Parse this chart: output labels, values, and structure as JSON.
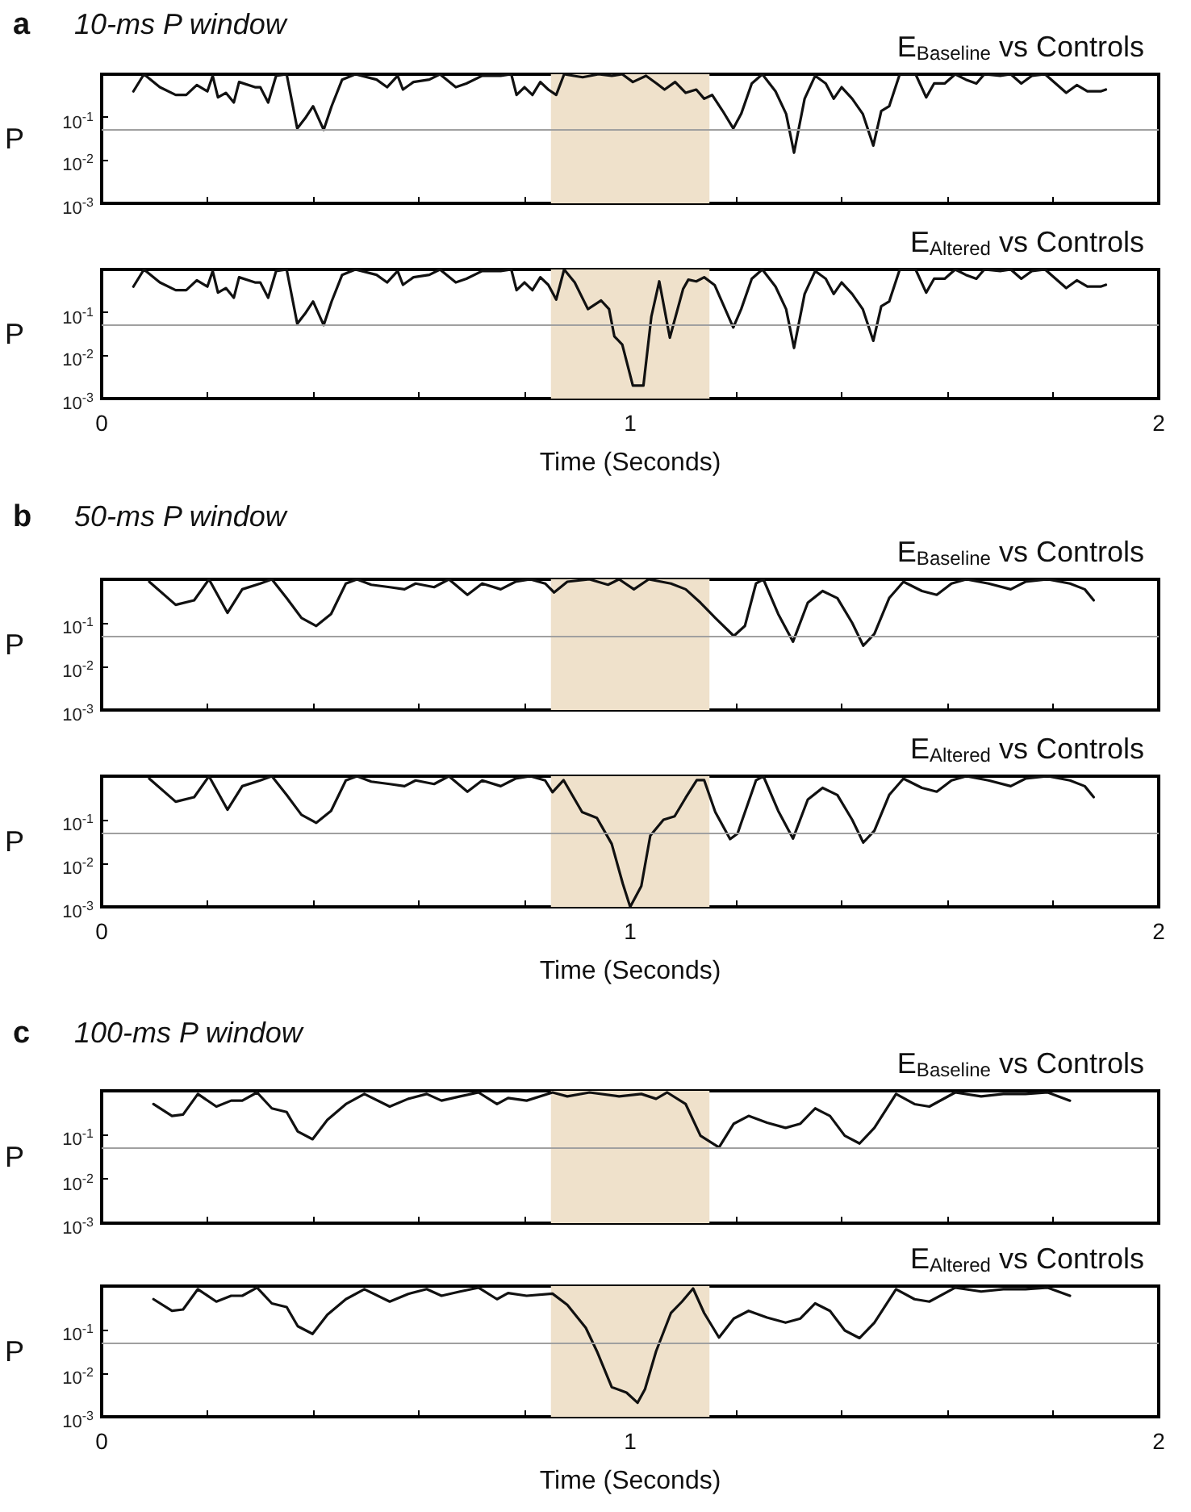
{
  "chart_data": [
    {
      "type": "line",
      "title": "E$_{Baseline}$ vs Controls",
      "annotations": [
        "a",
        "10-ms P window"
      ],
      "ylabel": "P",
      "tick_labels": "y",
      "log": "y",
      "x": [
        0.06,
        0.08,
        0.11,
        0.14,
        0.16,
        0.18,
        0.2,
        0.21,
        0.22,
        0.235,
        0.25,
        0.26,
        0.29,
        0.3,
        0.315,
        0.33,
        0.35,
        0.37,
        0.385,
        0.4,
        0.42,
        0.435,
        0.455,
        0.48,
        0.52,
        0.54,
        0.56,
        0.57,
        0.59,
        0.62,
        0.64,
        0.67,
        0.69,
        0.72,
        0.755,
        0.775,
        0.785,
        0.8,
        0.815,
        0.83,
        0.845,
        0.86,
        0.875,
        0.91,
        0.94,
        0.965,
        0.985,
        1.005,
        1.03,
        1.05,
        1.065,
        1.085,
        1.105,
        1.125,
        1.14,
        1.155,
        1.175,
        1.195,
        1.21,
        1.23,
        1.25,
        1.275,
        1.295,
        1.31,
        1.33,
        1.35,
        1.37,
        1.385,
        1.4,
        1.42,
        1.44,
        1.46,
        1.475,
        1.49,
        1.51,
        1.54,
        1.56,
        1.575,
        1.595,
        1.615,
        1.635,
        1.655,
        1.67,
        1.7,
        1.72,
        1.74,
        1.76,
        1.785,
        1.805,
        1.825,
        1.845,
        1.865,
        1.89,
        1.9
      ],
      "series": [
        {
          "color": "#111111",
          "values": [
            0.4,
            1,
            0.5,
            0.33,
            0.33,
            0.56,
            0.4,
            0.92,
            0.29,
            0.37,
            0.22,
            0.66,
            0.5,
            0.5,
            0.22,
            0.92,
            1,
            0.055,
            0.095,
            0.18,
            0.051,
            0.18,
            0.75,
            1,
            0.75,
            0.5,
            0.92,
            0.44,
            0.66,
            0.75,
            1,
            0.5,
            0.61,
            0.92,
            0.92,
            1,
            0.33,
            0.5,
            0.33,
            0.66,
            0.44,
            0.33,
            1,
            0.85,
            1,
            0.92,
            1,
            0.66,
            0.92,
            0.61,
            0.44,
            0.66,
            0.37,
            0.44,
            0.27,
            0.33,
            0.14,
            0.055,
            0.12,
            0.61,
            1,
            0.4,
            0.12,
            0.015,
            0.27,
            0.92,
            0.61,
            0.27,
            0.5,
            0.27,
            0.12,
            0.022,
            0.14,
            0.18,
            1,
            1,
            0.29,
            0.61,
            0.61,
            1,
            0.75,
            0.61,
            1,
            0.92,
            1,
            0.61,
            0.92,
            1,
            0.61,
            0.37,
            0.56,
            0.4,
            0.4,
            0.44
          ]
        }
      ],
      "xlim": [
        0,
        2
      ],
      "xticks": [
        0,
        {
          "value": 0.2,
          "label": null
        },
        {
          "value": 0.4,
          "label": null
        },
        {
          "value": 0.6,
          "label": null
        },
        {
          "value": 0.8,
          "label": null
        },
        1,
        {
          "value": 1.2,
          "label": null
        },
        {
          "value": 1.4,
          "label": null
        },
        {
          "value": 1.6,
          "label": null
        },
        {
          "value": 1.8,
          "label": null
        },
        2
      ],
      "ylim": [
        0.001,
        1
      ],
      "yticks": [
        {
          "value": 0.001,
          "label": "10$^{-3}$"
        },
        {
          "value": 0.01,
          "label": "10$^{-2}$"
        },
        {
          "value": 0.1,
          "label": "10$^{-1}$"
        }
      ],
      "ref_lines": [
        {
          "axis": "y",
          "value": 0.05,
          "color": "#a0a0a0"
        }
      ],
      "bands": [
        {
          "axis": "x",
          "from": 0.85,
          "to": 1.15,
          "color": "#efe1cb"
        }
      ]
    },
    {
      "type": "line",
      "title": "E$_{Altered}$ vs Controls",
      "xlabel": "Time (Seconds)",
      "ylabel": "P",
      "log": "y",
      "x": [
        0.06,
        0.08,
        0.11,
        0.14,
        0.16,
        0.18,
        0.2,
        0.21,
        0.22,
        0.235,
        0.25,
        0.26,
        0.29,
        0.3,
        0.315,
        0.33,
        0.35,
        0.37,
        0.385,
        0.4,
        0.42,
        0.435,
        0.455,
        0.48,
        0.52,
        0.54,
        0.56,
        0.57,
        0.59,
        0.62,
        0.64,
        0.67,
        0.69,
        0.72,
        0.755,
        0.775,
        0.785,
        0.8,
        0.815,
        0.83,
        0.845,
        0.86,
        0.875,
        0.895,
        0.92,
        0.945,
        0.96,
        0.97,
        0.985,
        1.005,
        1.025,
        1.04,
        1.055,
        1.075,
        1.1,
        1.11,
        1.125,
        1.14,
        1.16,
        1.195,
        1.21,
        1.23,
        1.25,
        1.275,
        1.295,
        1.31,
        1.33,
        1.35,
        1.37,
        1.385,
        1.4,
        1.42,
        1.44,
        1.46,
        1.475,
        1.49,
        1.51,
        1.54,
        1.56,
        1.575,
        1.595,
        1.615,
        1.635,
        1.655,
        1.67,
        1.7,
        1.72,
        1.74,
        1.76,
        1.785,
        1.805,
        1.825,
        1.845,
        1.865,
        1.89,
        1.9
      ],
      "series": [
        {
          "color": "#111111",
          "values": [
            0.4,
            1,
            0.5,
            0.33,
            0.33,
            0.56,
            0.4,
            0.92,
            0.29,
            0.37,
            0.22,
            0.66,
            0.5,
            0.5,
            0.22,
            0.92,
            1,
            0.055,
            0.095,
            0.18,
            0.051,
            0.18,
            0.75,
            1,
            0.75,
            0.5,
            0.92,
            0.44,
            0.66,
            0.75,
            1,
            0.5,
            0.61,
            0.92,
            0.92,
            1,
            0.33,
            0.5,
            0.33,
            0.66,
            0.44,
            0.2,
            1,
            0.5,
            0.12,
            0.19,
            0.12,
            0.028,
            0.018,
            0.002,
            0.002,
            0.08,
            0.53,
            0.026,
            0.35,
            0.58,
            0.53,
            0.66,
            0.43,
            0.045,
            0.12,
            0.61,
            1,
            0.4,
            0.12,
            0.015,
            0.27,
            0.92,
            0.61,
            0.27,
            0.5,
            0.27,
            0.12,
            0.022,
            0.14,
            0.18,
            1,
            1,
            0.29,
            0.61,
            0.61,
            1,
            0.75,
            0.61,
            1,
            0.92,
            1,
            0.61,
            0.92,
            1,
            0.61,
            0.37,
            0.56,
            0.4,
            0.4,
            0.44
          ]
        }
      ],
      "xlim": [
        0,
        2
      ],
      "xticks": [
        0,
        {
          "value": 0.2,
          "label": null
        },
        {
          "value": 0.4,
          "label": null
        },
        {
          "value": 0.6,
          "label": null
        },
        {
          "value": 0.8,
          "label": null
        },
        1,
        {
          "value": 1.2,
          "label": null
        },
        {
          "value": 1.4,
          "label": null
        },
        {
          "value": 1.6,
          "label": null
        },
        {
          "value": 1.8,
          "label": null
        },
        2
      ],
      "ylim": [
        0.001,
        1
      ],
      "yticks": [
        {
          "value": 0.001,
          "label": "10$^{-3}$"
        },
        {
          "value": 0.01,
          "label": "10$^{-2}$"
        },
        {
          "value": 0.1,
          "label": "10$^{-1}$"
        }
      ],
      "ref_lines": [
        {
          "axis": "y",
          "value": 0.05,
          "color": "#a0a0a0"
        }
      ],
      "bands": [
        {
          "axis": "x",
          "from": 0.85,
          "to": 1.15,
          "color": "#efe1cb"
        }
      ]
    },
    {
      "type": "line",
      "title": "E$_{Baseline}$ vs Controls",
      "annotations": [
        "b",
        "50-ms P window"
      ],
      "ylabel": "P",
      "tick_labels": "y",
      "log": "y",
      "x": [
        0.09,
        0.14,
        0.175,
        0.203,
        0.238,
        0.266,
        0.3,
        0.322,
        0.35,
        0.378,
        0.406,
        0.434,
        0.462,
        0.483,
        0.51,
        0.545,
        0.573,
        0.594,
        0.629,
        0.657,
        0.692,
        0.72,
        0.755,
        0.783,
        0.811,
        0.839,
        0.856,
        0.881,
        0.923,
        0.958,
        0.979,
        1.007,
        1.035,
        1.077,
        1.105,
        1.133,
        1.161,
        1.196,
        1.217,
        1.238,
        1.252,
        1.28,
        1.308,
        1.336,
        1.364,
        1.392,
        1.42,
        1.441,
        1.462,
        1.49,
        1.517,
        1.552,
        1.58,
        1.608,
        1.636,
        1.678,
        1.72,
        1.748,
        1.79,
        1.832,
        1.86,
        1.877
      ],
      "series": [
        {
          "color": "#111111",
          "values": [
            0.88,
            0.26,
            0.33,
            1,
            0.17,
            0.59,
            0.8,
            1,
            0.37,
            0.13,
            0.085,
            0.16,
            0.8,
            1,
            0.75,
            0.66,
            0.59,
            0.8,
            0.66,
            1,
            0.44,
            0.8,
            0.59,
            0.88,
            1,
            0.8,
            0.5,
            0.88,
            1,
            0.75,
            1,
            0.59,
            1,
            0.8,
            0.59,
            0.29,
            0.13,
            0.05,
            0.085,
            0.8,
            1,
            0.16,
            0.037,
            0.29,
            0.54,
            0.37,
            0.1,
            0.03,
            0.056,
            0.37,
            0.88,
            0.54,
            0.44,
            0.8,
            1,
            0.8,
            0.59,
            0.88,
            1,
            0.8,
            0.59,
            0.33
          ]
        }
      ],
      "xlim": [
        0,
        2
      ],
      "xticks": [
        0,
        {
          "value": 0.2,
          "label": null
        },
        {
          "value": 0.4,
          "label": null
        },
        {
          "value": 0.6,
          "label": null
        },
        {
          "value": 0.8,
          "label": null
        },
        1,
        {
          "value": 1.2,
          "label": null
        },
        {
          "value": 1.4,
          "label": null
        },
        {
          "value": 1.6,
          "label": null
        },
        {
          "value": 1.8,
          "label": null
        },
        2
      ],
      "ylim": [
        0.001,
        1
      ],
      "yticks": [
        {
          "value": 0.001,
          "label": "10$^{-3}$"
        },
        {
          "value": 0.01,
          "label": "10$^{-2}$"
        },
        {
          "value": 0.1,
          "label": "10$^{-1}$"
        }
      ],
      "ref_lines": [
        {
          "axis": "y",
          "value": 0.05,
          "color": "#a0a0a0"
        }
      ],
      "bands": [
        {
          "axis": "x",
          "from": 0.85,
          "to": 1.15,
          "color": "#efe1cb"
        }
      ]
    },
    {
      "type": "line",
      "title": "E$_{Altered}$ vs Controls",
      "xlabel": "Time (Seconds)",
      "ylabel": "P",
      "log": "y",
      "x": [
        0.09,
        0.14,
        0.175,
        0.203,
        0.238,
        0.266,
        0.3,
        0.322,
        0.35,
        0.378,
        0.406,
        0.434,
        0.462,
        0.483,
        0.51,
        0.545,
        0.573,
        0.594,
        0.629,
        0.657,
        0.692,
        0.72,
        0.755,
        0.783,
        0.811,
        0.839,
        0.853,
        0.874,
        0.909,
        0.937,
        0.965,
        0.986,
        1.0,
        1.021,
        1.038,
        1.063,
        1.084,
        1.105,
        1.126,
        1.14,
        1.161,
        1.189,
        1.203,
        1.238,
        1.252,
        1.28,
        1.308,
        1.336,
        1.364,
        1.392,
        1.42,
        1.441,
        1.462,
        1.49,
        1.517,
        1.552,
        1.58,
        1.608,
        1.636,
        1.678,
        1.72,
        1.748,
        1.79,
        1.832,
        1.86,
        1.877
      ],
      "series": [
        {
          "color": "#111111",
          "values": [
            0.88,
            0.26,
            0.33,
            1,
            0.17,
            0.59,
            0.8,
            1,
            0.37,
            0.13,
            0.085,
            0.16,
            0.8,
            1,
            0.75,
            0.66,
            0.59,
            0.8,
            0.66,
            1,
            0.44,
            0.8,
            0.59,
            0.88,
            1,
            0.8,
            0.43,
            0.81,
            0.15,
            0.11,
            0.028,
            0.0034,
            0.001,
            0.003,
            0.043,
            0.1,
            0.12,
            0.32,
            0.81,
            0.81,
            0.15,
            0.036,
            0.048,
            0.8,
            1,
            0.16,
            0.037,
            0.29,
            0.54,
            0.37,
            0.1,
            0.03,
            0.056,
            0.37,
            0.88,
            0.54,
            0.44,
            0.8,
            1,
            0.8,
            0.59,
            0.88,
            1,
            0.8,
            0.59,
            0.33
          ]
        }
      ],
      "xlim": [
        0,
        2
      ],
      "xticks": [
        0,
        {
          "value": 0.2,
          "label": null
        },
        {
          "value": 0.4,
          "label": null
        },
        {
          "value": 0.6,
          "label": null
        },
        {
          "value": 0.8,
          "label": null
        },
        1,
        {
          "value": 1.2,
          "label": null
        },
        {
          "value": 1.4,
          "label": null
        },
        {
          "value": 1.6,
          "label": null
        },
        {
          "value": 1.8,
          "label": null
        },
        2
      ],
      "ylim": [
        0.001,
        1
      ],
      "yticks": [
        {
          "value": 0.001,
          "label": "10$^{-3}$"
        },
        {
          "value": 0.01,
          "label": "10$^{-2}$"
        },
        {
          "value": 0.1,
          "label": "10$^{-1}$"
        }
      ],
      "ref_lines": [
        {
          "axis": "y",
          "value": 0.05,
          "color": "#a0a0a0"
        }
      ],
      "bands": [
        {
          "axis": "x",
          "from": 0.85,
          "to": 1.15,
          "color": "#efe1cb"
        }
      ]
    },
    {
      "type": "line",
      "title": "E$_{Baseline}$ vs Controls",
      "annotations": [
        "c",
        "100-ms P window"
      ],
      "ylabel": "P",
      "tick_labels": "y",
      "log": "y",
      "x": [
        0.098,
        0.133,
        0.154,
        0.182,
        0.217,
        0.245,
        0.266,
        0.294,
        0.322,
        0.35,
        0.371,
        0.399,
        0.427,
        0.462,
        0.497,
        0.545,
        0.58,
        0.615,
        0.643,
        0.678,
        0.713,
        0.748,
        0.769,
        0.804,
        0.853,
        0.881,
        0.923,
        0.979,
        1.021,
        1.049,
        1.07,
        1.105,
        1.133,
        1.168,
        1.196,
        1.224,
        1.259,
        1.294,
        1.322,
        1.35,
        1.378,
        1.406,
        1.434,
        1.462,
        1.503,
        1.538,
        1.566,
        1.615,
        1.664,
        1.706,
        1.748,
        1.79,
        1.832
      ],
      "series": [
        {
          "color": "#111111",
          "values": [
            0.5,
            0.27,
            0.29,
            0.85,
            0.44,
            0.6,
            0.6,
            0.92,
            0.4,
            0.33,
            0.12,
            0.08,
            0.22,
            0.5,
            0.85,
            0.44,
            0.66,
            0.85,
            0.6,
            0.75,
            0.92,
            0.5,
            0.69,
            0.6,
            0.92,
            0.75,
            0.92,
            0.75,
            0.85,
            0.66,
            0.92,
            0.5,
            0.096,
            0.052,
            0.18,
            0.27,
            0.19,
            0.145,
            0.18,
            0.4,
            0.27,
            0.096,
            0.064,
            0.145,
            0.85,
            0.5,
            0.44,
            0.92,
            0.75,
            0.85,
            0.85,
            0.92,
            0.6
          ]
        }
      ],
      "xlim": [
        0,
        2
      ],
      "xticks": [
        0,
        {
          "value": 0.2,
          "label": null
        },
        {
          "value": 0.4,
          "label": null
        },
        {
          "value": 0.6,
          "label": null
        },
        {
          "value": 0.8,
          "label": null
        },
        1,
        {
          "value": 1.2,
          "label": null
        },
        {
          "value": 1.4,
          "label": null
        },
        {
          "value": 1.6,
          "label": null
        },
        {
          "value": 1.8,
          "label": null
        },
        2
      ],
      "ylim": [
        0.001,
        1
      ],
      "yticks": [
        {
          "value": 0.001,
          "label": "10$^{-3}$"
        },
        {
          "value": 0.01,
          "label": "10$^{-2}$"
        },
        {
          "value": 0.1,
          "label": "10$^{-1}$"
        }
      ],
      "ref_lines": [
        {
          "axis": "y",
          "value": 0.05,
          "color": "#a0a0a0"
        }
      ],
      "bands": [
        {
          "axis": "x",
          "from": 0.85,
          "to": 1.15,
          "color": "#efe1cb"
        }
      ]
    },
    {
      "type": "line",
      "title": "E$_{Altered}$ vs Controls",
      "xlabel": "Time (Seconds)",
      "ylabel": "P",
      "log": "y",
      "x": [
        0.098,
        0.133,
        0.154,
        0.182,
        0.217,
        0.245,
        0.266,
        0.294,
        0.322,
        0.35,
        0.371,
        0.399,
        0.427,
        0.462,
        0.497,
        0.545,
        0.58,
        0.615,
        0.643,
        0.678,
        0.713,
        0.748,
        0.769,
        0.804,
        0.853,
        0.881,
        0.916,
        0.937,
        0.965,
        0.993,
        1.014,
        1.028,
        1.049,
        1.077,
        1.098,
        1.119,
        1.14,
        1.168,
        1.196,
        1.224,
        1.259,
        1.294,
        1.322,
        1.35,
        1.378,
        1.406,
        1.434,
        1.462,
        1.503,
        1.538,
        1.566,
        1.615,
        1.664,
        1.706,
        1.748,
        1.79,
        1.832
      ],
      "series": [
        {
          "color": "#111111",
          "values": [
            0.5,
            0.27,
            0.29,
            0.85,
            0.44,
            0.6,
            0.6,
            0.92,
            0.4,
            0.33,
            0.12,
            0.08,
            0.22,
            0.5,
            0.85,
            0.44,
            0.66,
            0.85,
            0.6,
            0.75,
            0.92,
            0.5,
            0.69,
            0.6,
            0.67,
            0.37,
            0.11,
            0.032,
            0.0048,
            0.0036,
            0.0021,
            0.0043,
            0.032,
            0.24,
            0.44,
            0.88,
            0.24,
            0.066,
            0.18,
            0.27,
            0.19,
            0.145,
            0.18,
            0.4,
            0.27,
            0.096,
            0.064,
            0.145,
            0.85,
            0.5,
            0.44,
            0.92,
            0.75,
            0.85,
            0.85,
            0.92,
            0.6
          ]
        }
      ],
      "xlim": [
        0,
        2
      ],
      "xticks": [
        0,
        {
          "value": 0.2,
          "label": null
        },
        {
          "value": 0.4,
          "label": null
        },
        {
          "value": 0.6,
          "label": null
        },
        {
          "value": 0.8,
          "label": null
        },
        1,
        {
          "value": 1.2,
          "label": null
        },
        {
          "value": 1.4,
          "label": null
        },
        {
          "value": 1.6,
          "label": null
        },
        {
          "value": 1.8,
          "label": null
        },
        2
      ],
      "ylim": [
        0.001,
        1
      ],
      "yticks": [
        {
          "value": 0.001,
          "label": "10$^{-3}$"
        },
        {
          "value": 0.01,
          "label": "10$^{-2}$"
        },
        {
          "value": 0.1,
          "label": "10$^{-1}$"
        }
      ],
      "ref_lines": [
        {
          "axis": "y",
          "value": 0.05,
          "color": "#a0a0a0"
        }
      ],
      "bands": [
        {
          "axis": "x",
          "from": 0.85,
          "to": 1.15,
          "color": "#efe1cb"
        }
      ]
    }
  ]
}
